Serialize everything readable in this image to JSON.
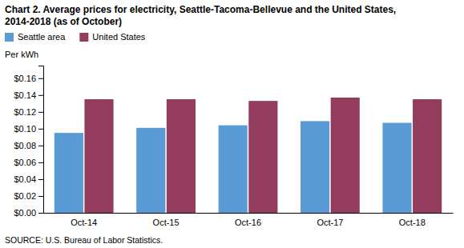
{
  "chart_data": {
    "type": "bar",
    "title": "Chart 2. Average prices for electricity, Seattle-Tacoma-Bellevue and the United States,",
    "subtitle": "2014-2018  (as of October)",
    "ylabel": "Per kWh",
    "source": "SOURCE: U.S. Bureau of Labor Statistics.",
    "categories": [
      "Oct-14",
      "Oct-15",
      "Oct-16",
      "Oct-17",
      "Oct-18"
    ],
    "series": [
      {
        "name": "Seattle area",
        "color": "#5B9BD5",
        "values": [
          0.095,
          0.101,
          0.104,
          0.109,
          0.107
        ]
      },
      {
        "name": "United States",
        "color": "#943C5E",
        "values": [
          0.135,
          0.135,
          0.133,
          0.137,
          0.135
        ]
      }
    ],
    "ylim": [
      0.0,
      0.175
    ],
    "yticks": [
      {
        "value": 0.0,
        "label": "$0.00"
      },
      {
        "value": 0.02,
        "label": "$0.02"
      },
      {
        "value": 0.04,
        "label": "$0.04"
      },
      {
        "value": 0.06,
        "label": "$0.06"
      },
      {
        "value": 0.08,
        "label": "$0.08"
      },
      {
        "value": 0.1,
        "label": "$0.10"
      },
      {
        "value": 0.12,
        "label": "$0.12"
      },
      {
        "value": 0.14,
        "label": "$0.14"
      },
      {
        "value": 0.16,
        "label": "$0.16"
      }
    ],
    "grid": false,
    "legend": "top-left"
  }
}
